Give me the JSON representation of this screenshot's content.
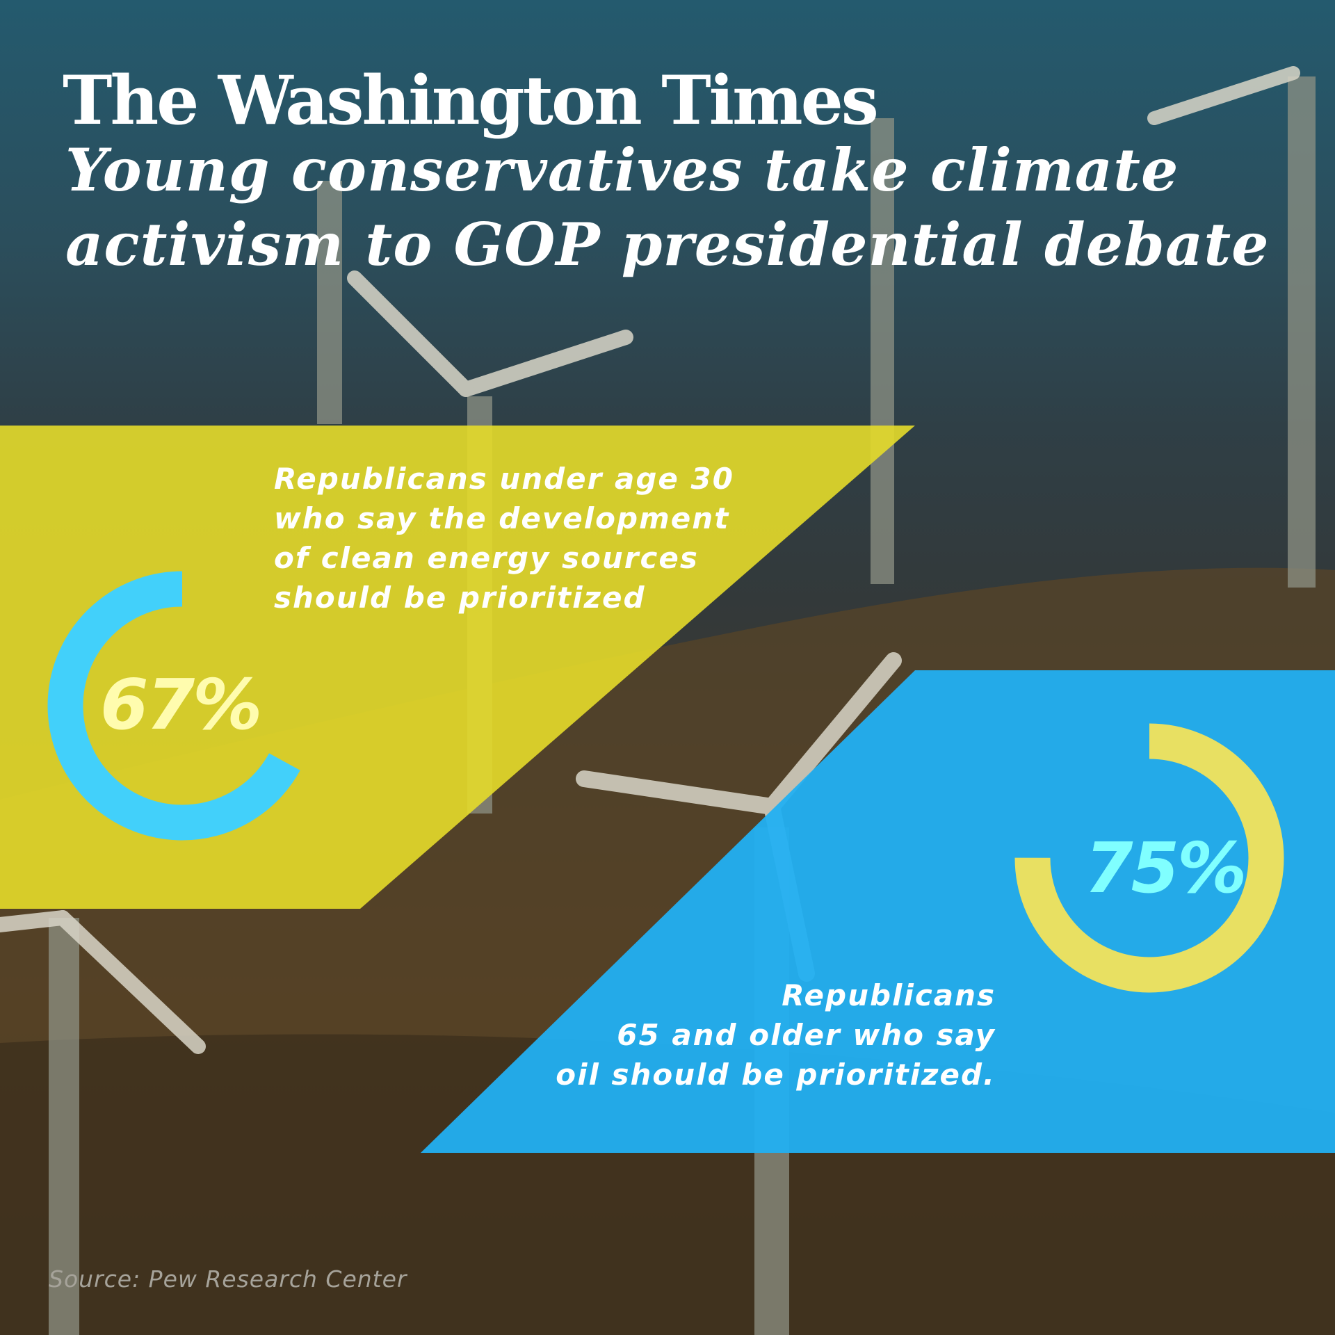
{
  "header": {
    "logo": "The Washington Times",
    "title_line1": "Young conservatives take climate",
    "title_line2": "activism to GOP presidential debate"
  },
  "stats": [
    {
      "value": 67,
      "value_label": "67%",
      "lines": [
        "Republicans under age 30",
        "who say the development",
        "of clean energy sources",
        "should be prioritized"
      ],
      "band_color": "#e6dc2a",
      "ring_color": "#42d0fa",
      "label_color": "#fffcae",
      "ring_direction": "counterclockwise"
    },
    {
      "value": 75,
      "value_label": "75%",
      "lines": [
        "Republicans",
        "65 and older who say",
        "oil should be prioritized."
      ],
      "band_color": "#22b0f2",
      "ring_color": "#e8e062",
      "label_color": "#80ffff",
      "ring_direction": "clockwise"
    }
  ],
  "footer": {
    "source": "Source: Pew Research Center"
  }
}
